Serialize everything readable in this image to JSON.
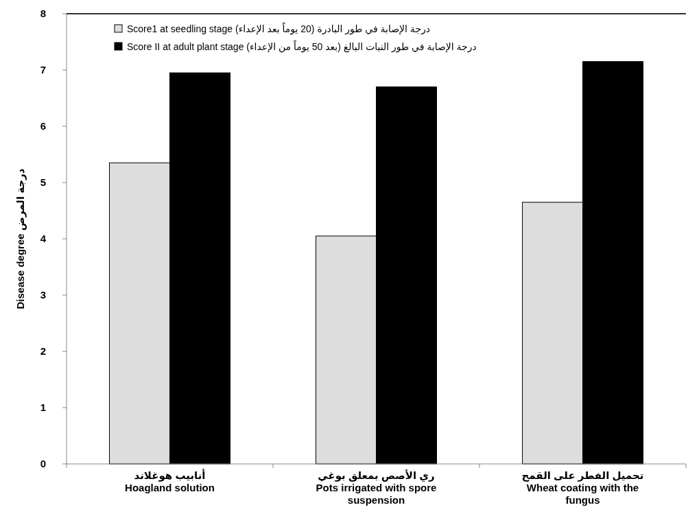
{
  "chart_data": {
    "type": "bar",
    "ylabel": "Disease degree درجة المرض",
    "categories": [
      "أنابيب هوغلاند\nHoagland solution",
      "ري الأصص بمعلق بوغي\nPots irrigated with spore suspension",
      "تحميل الفطر على القمح\nWheat coating with the fungus"
    ],
    "series": [
      {
        "name": "Score1 at seedling stage   درجة الإصابة في طور البادرة (20 يوماً بعد الإعداء)",
        "color": "#dddddd",
        "values": [
          5.35,
          4.05,
          4.65
        ]
      },
      {
        "name": "Score II at adult plant stage   درجة الإصابة في طور النبات البالغ (بعد 50 يوماً من الإعداء)",
        "color": "#000000",
        "values": [
          6.95,
          6.7,
          7.15
        ]
      }
    ],
    "ylim": [
      0,
      8
    ],
    "yticks": [
      0,
      1,
      2,
      3,
      4,
      5,
      6,
      7,
      8
    ],
    "grid": false,
    "legend": "top left"
  }
}
